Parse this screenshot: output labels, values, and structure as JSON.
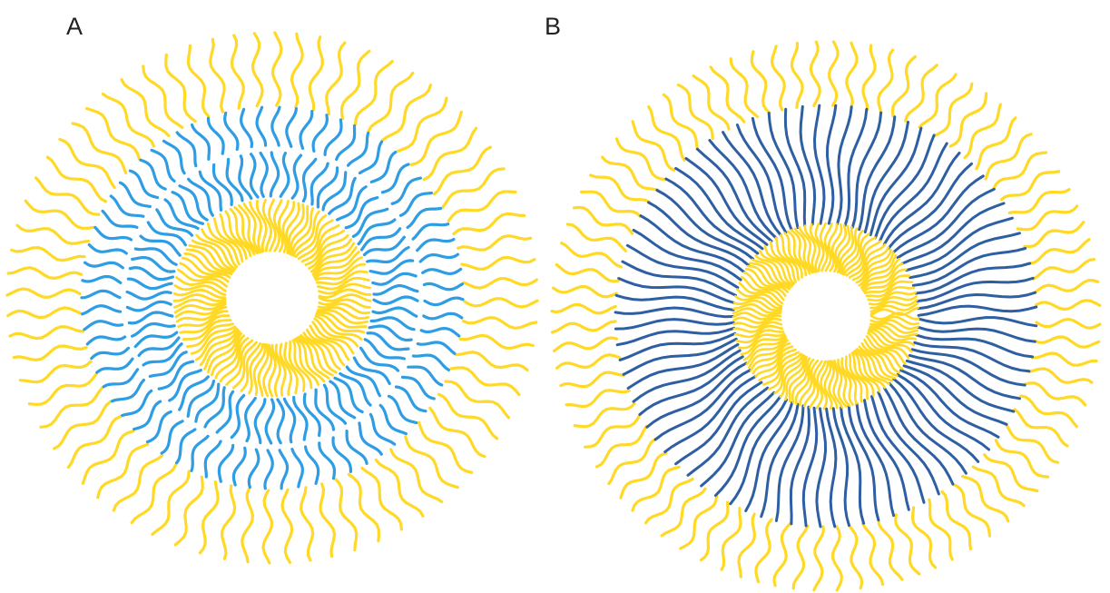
{
  "panels": [
    {
      "label": "A",
      "segments": [
        {
          "role": "core",
          "color": "#ffd926"
        },
        {
          "role": "mid-inner",
          "color": "#2e9de4"
        },
        {
          "role": "mid-outer",
          "color": "#2e9de4"
        },
        {
          "role": "corona",
          "color": "#ffd926"
        }
      ]
    },
    {
      "label": "B",
      "segments": [
        {
          "role": "core",
          "color": "#ffd926"
        },
        {
          "role": "mid",
          "color": "#2f5fa3"
        },
        {
          "role": "corona",
          "color": "#ffd926"
        }
      ]
    }
  ]
}
